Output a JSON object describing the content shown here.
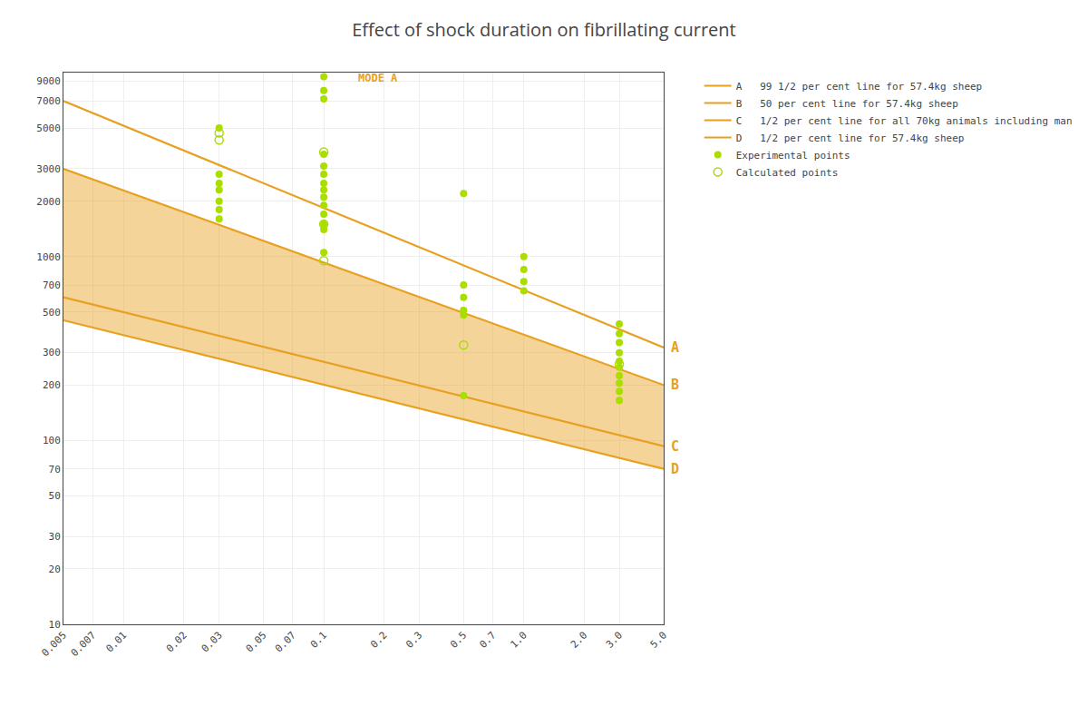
{
  "chart_data": {
    "type": "scatter",
    "title": "Effect of shock duration on fibrillating current",
    "log": true,
    "grid": true,
    "legend": "right",
    "color": "#E8A020",
    "xlim": [
      0.005,
      5.0
    ],
    "ylim": [
      10,
      10000
    ],
    "xticks": [
      0.005,
      0.007,
      0.01,
      0.02,
      0.03,
      0.05,
      0.07,
      0.1,
      0.2,
      0.3,
      0.5,
      0.7,
      {
        "value": 1.0,
        "label": "1.0"
      },
      {
        "value": 2.0,
        "label": "2.0"
      },
      {
        "value": 3.0,
        "label": "3.0"
      },
      {
        "value": 5.0,
        "label": "5.0"
      }
    ],
    "yticks": [
      10,
      20,
      30,
      50,
      70,
      100,
      200,
      300,
      500,
      700,
      1000,
      2000,
      3000,
      5000,
      7000,
      9000
    ],
    "band": {
      "x": [
        0.005,
        5.0
      ],
      "lower": [
        450,
        70
      ],
      "upper": [
        3000,
        200
      ]
    },
    "series": [
      {
        "name": "A   99 1/2 per cent line for 57.4kg sheep",
        "type": "line",
        "color": "#E8A020",
        "x": [
          0.005,
          5.0
        ],
        "values": [
          7000,
          320
        ]
      },
      {
        "name": "B   50 per cent line for 57.4kg sheep",
        "type": "line",
        "color": "#E8A020",
        "x": [
          0.005,
          5.0
        ],
        "values": [
          3000,
          200
        ]
      },
      {
        "name": "C   1/2 per cent line for all 70kg animals including man",
        "type": "line",
        "color": "#E8A020",
        "x": [
          0.005,
          5.0
        ],
        "values": [
          600,
          93
        ]
      },
      {
        "name": "D   1/2 per cent line for 57.4kg sheep",
        "type": "line",
        "color": "#E8A020",
        "x": [
          0.005,
          5.0
        ],
        "values": [
          450,
          70
        ]
      },
      {
        "name": "Experimental points",
        "type": "scatter",
        "marker": "circle",
        "color": "#aadd00",
        "x": [
          0.03,
          0.03,
          0.03,
          0.03,
          0.03,
          0.03,
          0.03,
          0.1,
          0.1,
          0.1,
          0.1,
          0.1,
          0.1,
          0.1,
          0.1,
          0.1,
          0.1,
          0.1,
          0.1,
          0.1,
          0.1,
          0.5,
          0.5,
          0.5,
          0.5,
          0.5,
          0.5,
          1.0,
          1.0,
          1.0,
          1.0,
          3.0,
          3.0,
          3.0,
          3.0,
          3.0,
          3.0,
          3.0,
          3.0,
          3.0,
          3.0
        ],
        "values": [
          5000,
          2800,
          2500,
          2300,
          2000,
          1800,
          1600,
          9500,
          8000,
          7200,
          3600,
          3100,
          2800,
          2500,
          2300,
          2100,
          1900,
          1700,
          1500,
          1400,
          1050,
          2200,
          700,
          600,
          510,
          480,
          175,
          1000,
          850,
          730,
          650,
          430,
          380,
          340,
          300,
          270,
          250,
          225,
          205,
          185,
          165
        ]
      },
      {
        "name": "Calculated points",
        "type": "scatter",
        "marker": "circle-open",
        "color": "#aadd00",
        "x": [
          0.03,
          0.03,
          0.1,
          0.1,
          0.1,
          0.5,
          3.0
        ],
        "values": [
          4700,
          4300,
          3700,
          1500,
          950,
          330,
          260
        ]
      }
    ],
    "annotations": [
      {
        "text": "A",
        "x": 5.0,
        "y": 320
      },
      {
        "text": "B",
        "x": 5.0,
        "y": 200
      },
      {
        "text": "C",
        "x": 5.0,
        "y": 93
      },
      {
        "text": "D",
        "x": 5.0,
        "y": 70
      },
      {
        "text": "MODE A",
        "x": 0.145,
        "y": 9300
      }
    ]
  }
}
